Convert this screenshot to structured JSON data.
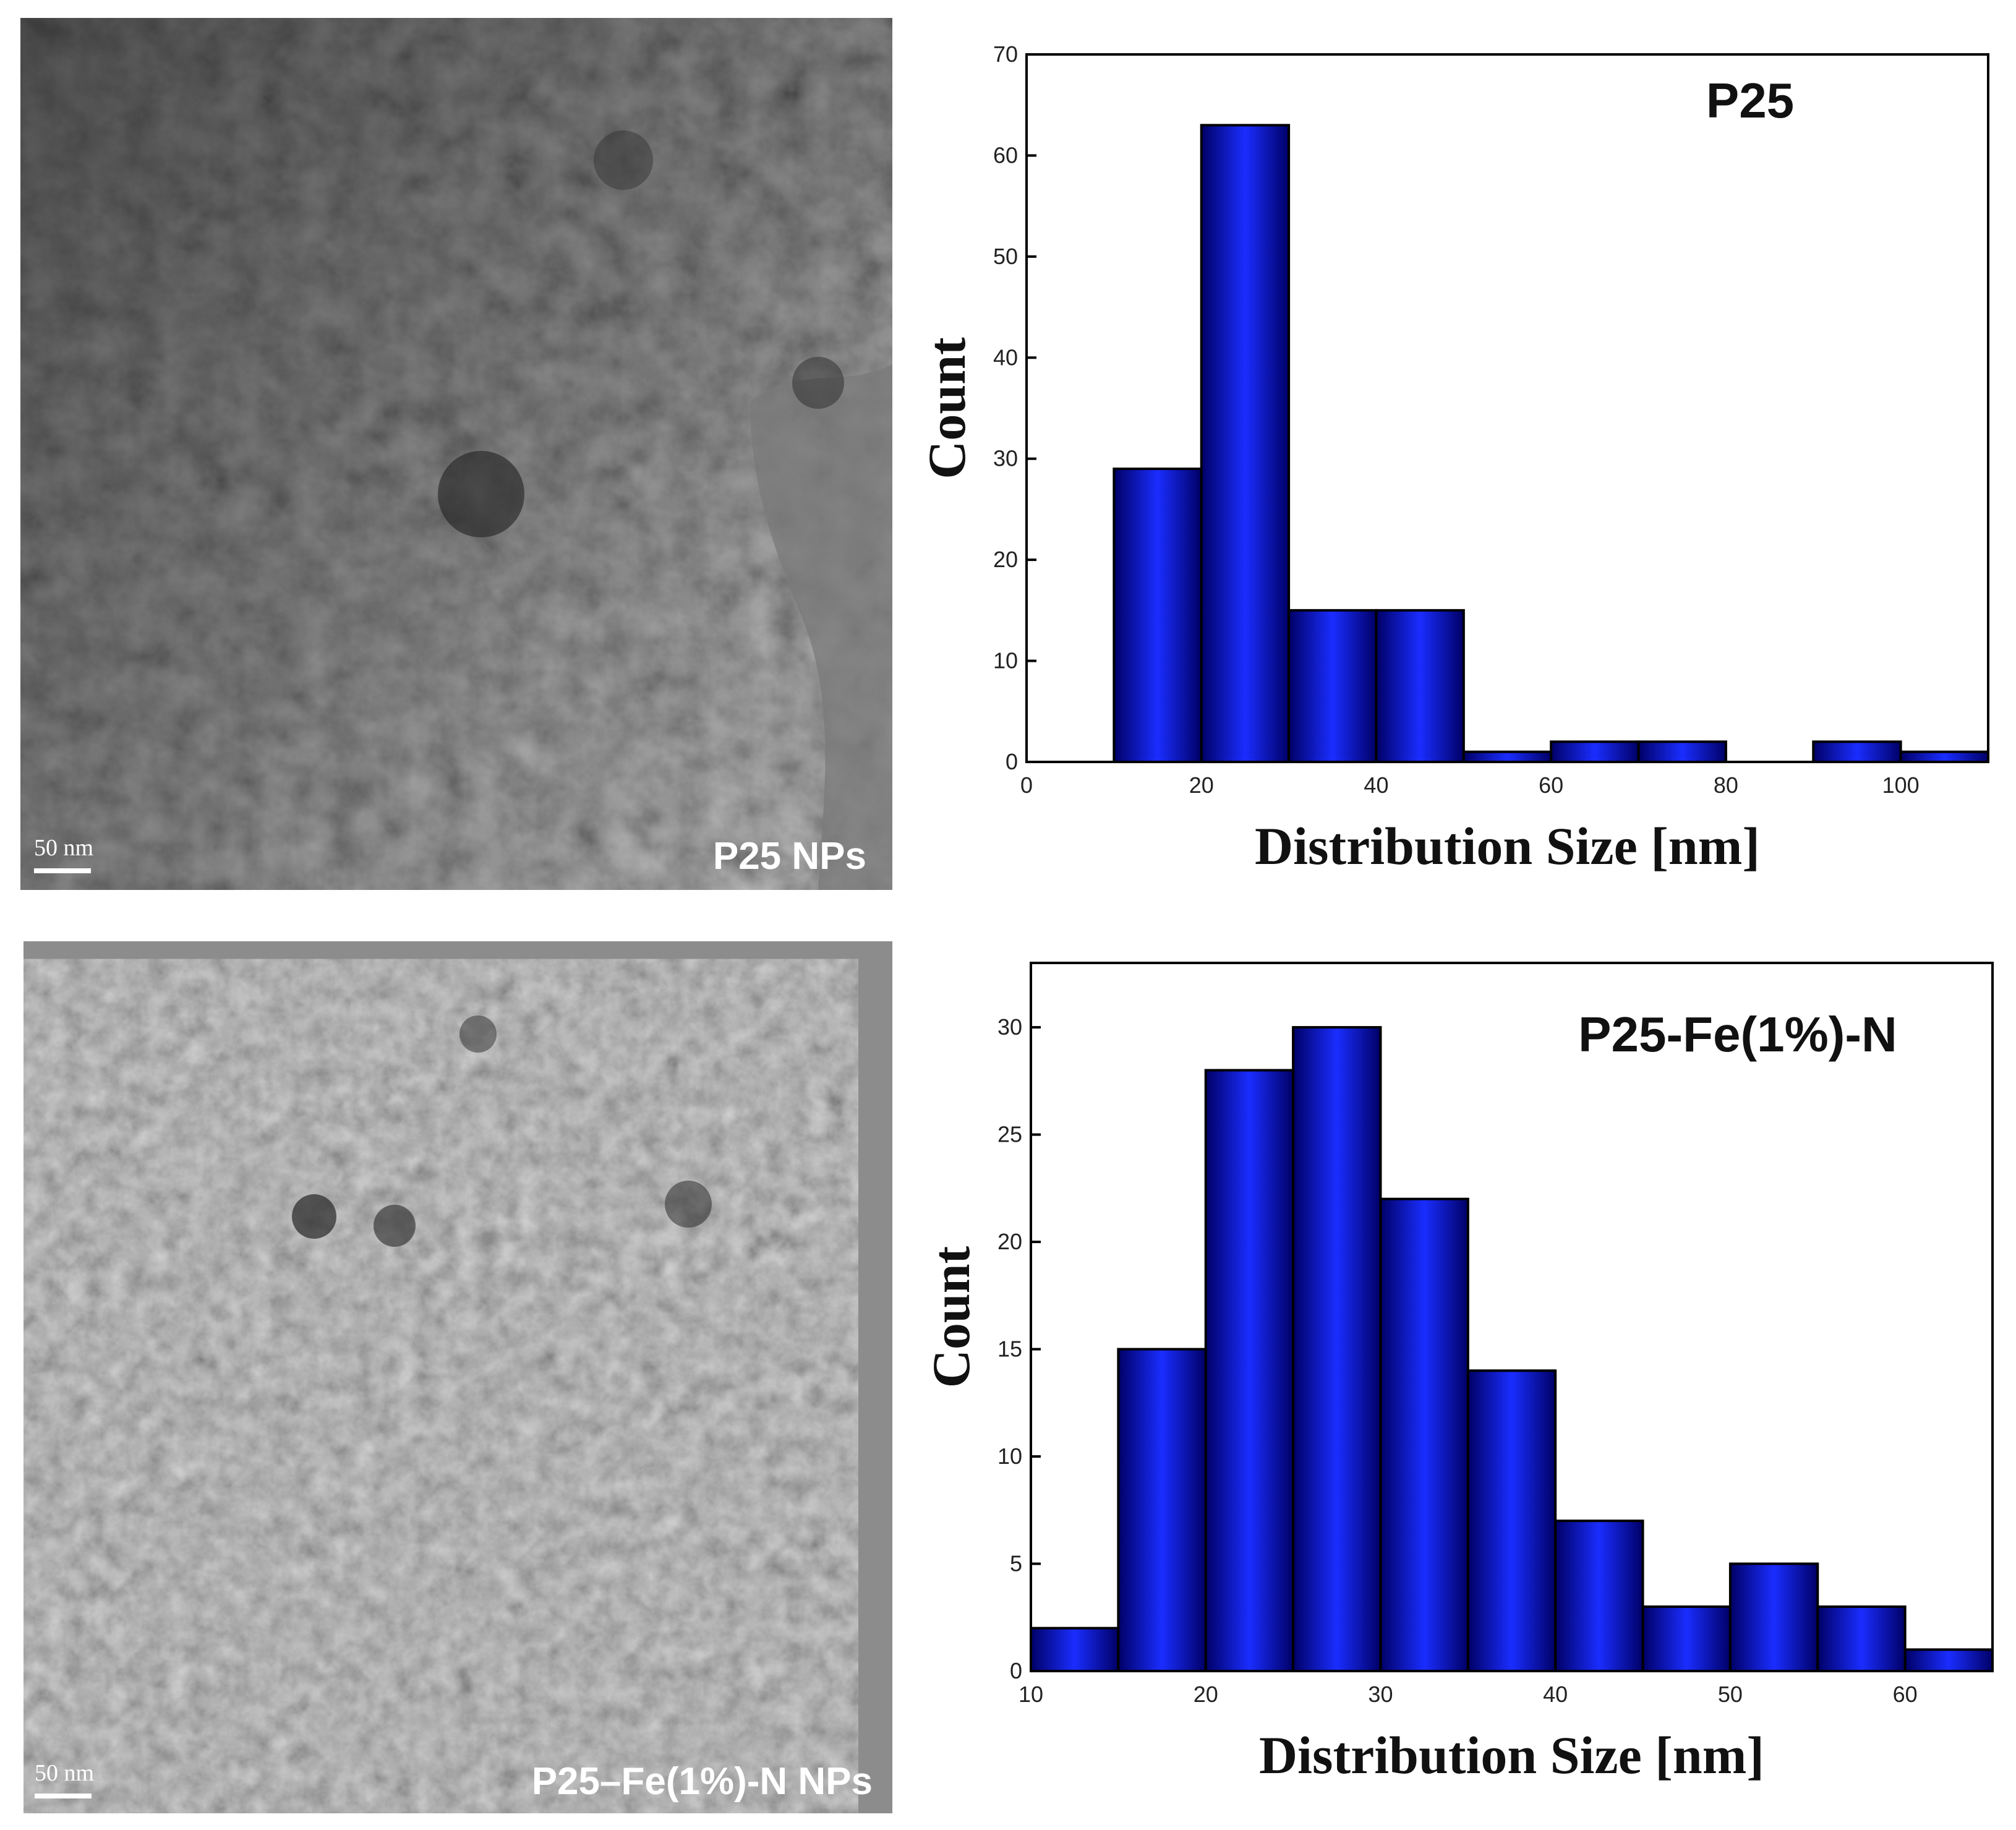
{
  "tem_images": [
    {
      "scale_label": "50 nm",
      "label": "P25 NPs"
    },
    {
      "scale_label": "50 nm",
      "label": "P25–Fe(1%)-N  NPs"
    }
  ],
  "colors": {
    "bar_center": "#1a2dff",
    "bar_edge": "#000066",
    "bar_outline": "#000000"
  },
  "chart_data": [
    {
      "type": "bar",
      "label": "P25",
      "xlabel": "Distribution Size [nm]",
      "ylabel": "Count",
      "xlim": [
        0,
        110
      ],
      "ylim": [
        0,
        70
      ],
      "xticks": [
        0,
        20,
        40,
        60,
        80,
        100
      ],
      "yticks": [
        0,
        10,
        20,
        30,
        40,
        50,
        60,
        70
      ],
      "bins": [
        {
          "x0": 10,
          "x1": 20,
          "count": 29
        },
        {
          "x0": 20,
          "x1": 30,
          "count": 63
        },
        {
          "x0": 30,
          "x1": 40,
          "count": 15
        },
        {
          "x0": 40,
          "x1": 50,
          "count": 15
        },
        {
          "x0": 50,
          "x1": 60,
          "count": 1
        },
        {
          "x0": 60,
          "x1": 70,
          "count": 2
        },
        {
          "x0": 70,
          "x1": 80,
          "count": 2
        },
        {
          "x0": 80,
          "x1": 90,
          "count": 0
        },
        {
          "x0": 90,
          "x1": 100,
          "count": 2
        },
        {
          "x0": 100,
          "x1": 110,
          "count": 1
        }
      ]
    },
    {
      "type": "bar",
      "label": "P25-Fe(1%)-N",
      "xlabel": "Distribution Size [nm]",
      "ylabel": "Count",
      "xlim": [
        10,
        65
      ],
      "ylim": [
        0,
        33
      ],
      "xticks": [
        10,
        20,
        30,
        40,
        50,
        60
      ],
      "yticks": [
        0,
        5,
        10,
        15,
        20,
        25,
        30
      ],
      "bins": [
        {
          "x0": 10,
          "x1": 15,
          "count": 2
        },
        {
          "x0": 15,
          "x1": 20,
          "count": 15
        },
        {
          "x0": 20,
          "x1": 25,
          "count": 28
        },
        {
          "x0": 25,
          "x1": 30,
          "count": 30
        },
        {
          "x0": 30,
          "x1": 35,
          "count": 22
        },
        {
          "x0": 35,
          "x1": 40,
          "count": 14
        },
        {
          "x0": 40,
          "x1": 45,
          "count": 7
        },
        {
          "x0": 45,
          "x1": 50,
          "count": 3
        },
        {
          "x0": 50,
          "x1": 55,
          "count": 5
        },
        {
          "x0": 55,
          "x1": 60,
          "count": 3
        },
        {
          "x0": 60,
          "x1": 65,
          "count": 1
        }
      ]
    }
  ]
}
